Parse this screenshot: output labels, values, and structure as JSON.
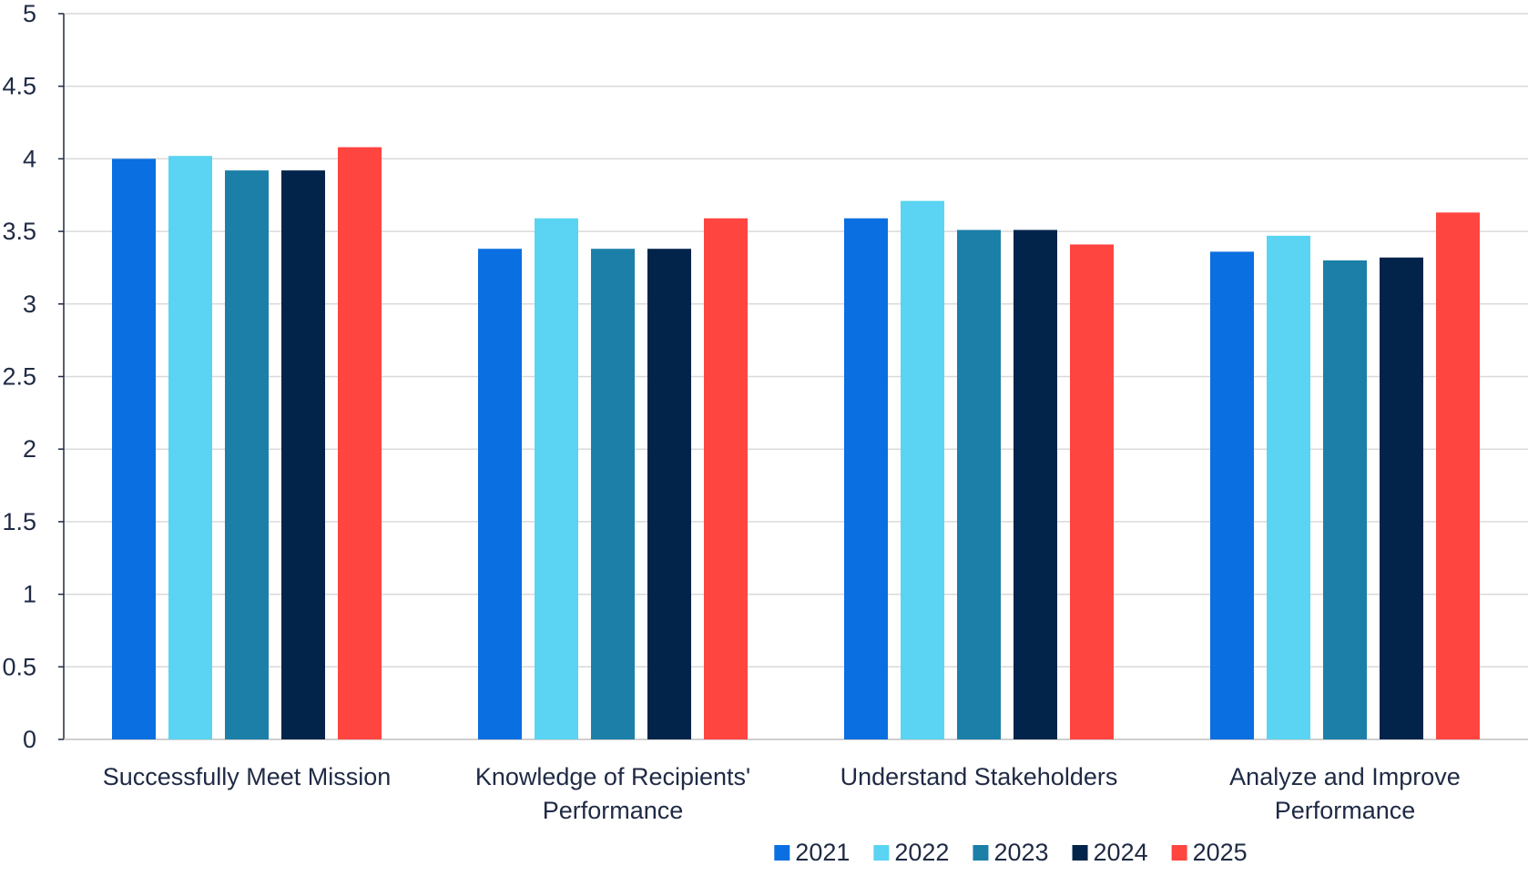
{
  "chart_data": {
    "type": "bar",
    "title": "",
    "xlabel": "",
    "ylabel": "",
    "ylim": [
      0,
      5
    ],
    "yticks": [
      "0",
      "0.5",
      "1",
      "1.5",
      "2",
      "2.5",
      "3",
      "3.5",
      "4",
      "4.5",
      "5"
    ],
    "grid": "horizontal",
    "legend_position": "bottom",
    "categories": [
      [
        "Successfully Meet Mission"
      ],
      [
        "Knowledge of Recipients'",
        "Performance"
      ],
      [
        "Understand Stakeholders"
      ],
      [
        "Analyze and Improve",
        "Performance"
      ]
    ],
    "series": [
      {
        "name": "2021",
        "color": "#0a6fe0",
        "values": [
          4.0,
          3.38,
          3.59,
          3.36
        ]
      },
      {
        "name": "2022",
        "color": "#5ad4f2",
        "values": [
          4.02,
          3.59,
          3.71,
          3.47
        ]
      },
      {
        "name": "2023",
        "color": "#1b7fa8",
        "values": [
          3.92,
          3.38,
          3.51,
          3.3
        ]
      },
      {
        "name": "2024",
        "color": "#02244a",
        "values": [
          3.92,
          3.38,
          3.51,
          3.32
        ]
      },
      {
        "name": "2025",
        "color": "#ff4540",
        "values": [
          4.08,
          3.59,
          3.41,
          3.63
        ]
      }
    ]
  }
}
